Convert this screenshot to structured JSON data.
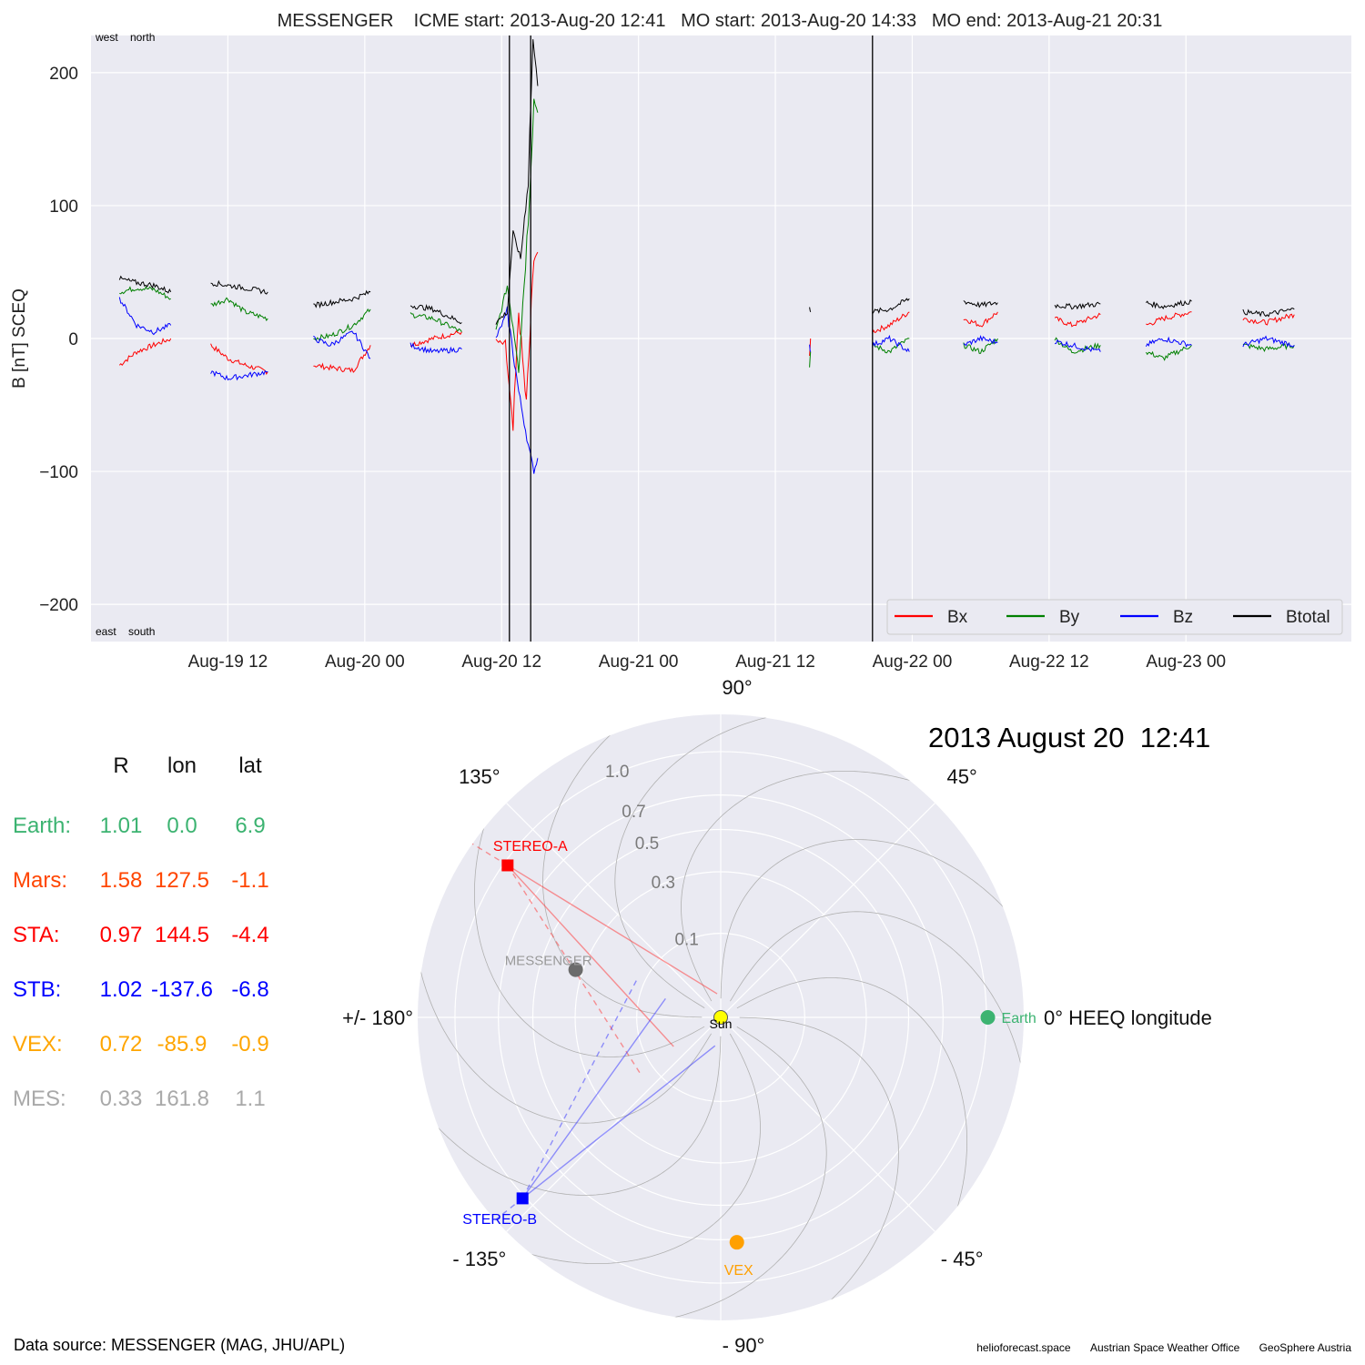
{
  "chart_data": [
    {
      "type": "line",
      "title": "MESSENGER    ICME start: 2013-Aug-20 12:41   MO start: 2013-Aug-20 14:33   MO end: 2013-Aug-21 20:31",
      "ylabel": "B [nT] SCEQ",
      "ylim": [
        -228,
        228
      ],
      "xlim": [
        "2013-08-19 00:00",
        "2013-08-23 14:30"
      ],
      "yticks": [
        -200,
        -100,
        0,
        100,
        200
      ],
      "xticks": [
        "Aug-19 12",
        "Aug-20 00",
        "Aug-20 12",
        "Aug-21 00",
        "Aug-21 12",
        "Aug-22 00",
        "Aug-22 12",
        "Aug-23 00"
      ],
      "xtick_times": [
        "2013-08-19 12:00",
        "2013-08-20 00:00",
        "2013-08-20 12:00",
        "2013-08-21 00:00",
        "2013-08-21 12:00",
        "2013-08-22 00:00",
        "2013-08-22 12:00",
        "2013-08-23 00:00"
      ],
      "corner_labels": {
        "top": "west    north",
        "bottom": "east    south"
      },
      "vlines": [
        "2013-08-20 12:41",
        "2013-08-20 14:33",
        "2013-08-21 20:31"
      ],
      "grid": true,
      "legend": {
        "placement": "bottom-right",
        "entries": [
          "Bx",
          "By",
          "Bz",
          "Btotal"
        ]
      },
      "series": [
        {
          "name": "Bx",
          "color": "#ff0000",
          "segments": [
            {
              "x": [
                "2013-08-19 02:30",
                "2013-08-19 04:00",
                "2013-08-19 05:30",
                "2013-08-19 07:00"
              ],
              "y": [
                -20,
                -10,
                -5,
                0
              ]
            },
            {
              "x": [
                "2013-08-19 10:30",
                "2013-08-19 12:00",
                "2013-08-19 13:30",
                "2013-08-19 15:30"
              ],
              "y": [
                -5,
                -15,
                -20,
                -25
              ]
            },
            {
              "x": [
                "2013-08-19 19:30",
                "2013-08-19 21:00",
                "2013-08-19 23:00",
                "2013-08-20 00:30"
              ],
              "y": [
                -20,
                -22,
                -24,
                -5
              ]
            },
            {
              "x": [
                "2013-08-20 04:00",
                "2013-08-20 06:00",
                "2013-08-20 08:30"
              ],
              "y": [
                -5,
                0,
                5
              ]
            },
            {
              "x": [
                "2013-08-20 11:30",
                "2013-08-20 12:20",
                "2013-08-20 13:00",
                "2013-08-20 13:30",
                "2013-08-20 14:10",
                "2013-08-20 14:50",
                "2013-08-20 15:10"
              ],
              "y": [
                -2,
                -5,
                -70,
                20,
                -50,
                60,
                65
              ]
            },
            {
              "x": [
                "2013-08-21 15:00",
                "2013-08-21 15:05"
              ],
              "y": [
                -15,
                0
              ]
            },
            {
              "x": [
                "2013-08-21 20:30",
                "2013-08-21 22:00",
                "2013-08-21 23:45"
              ],
              "y": [
                5,
                10,
                20
              ]
            },
            {
              "x": [
                "2013-08-22 04:30",
                "2013-08-22 06:00",
                "2013-08-22 07:30"
              ],
              "y": [
                15,
                10,
                20
              ]
            },
            {
              "x": [
                "2013-08-22 12:30",
                "2013-08-22 14:00",
                "2013-08-22 16:30"
              ],
              "y": [
                15,
                10,
                18
              ]
            },
            {
              "x": [
                "2013-08-22 20:30",
                "2013-08-22 22:00",
                "2013-08-23 00:30"
              ],
              "y": [
                10,
                15,
                20
              ]
            },
            {
              "x": [
                "2013-08-23 05:00",
                "2013-08-23 07:00",
                "2013-08-23 09:30"
              ],
              "y": [
                15,
                12,
                18
              ]
            }
          ]
        },
        {
          "name": "By",
          "color": "#008000",
          "segments": [
            {
              "x": [
                "2013-08-19 02:30",
                "2013-08-19 04:00",
                "2013-08-19 05:30",
                "2013-08-19 07:00"
              ],
              "y": [
                35,
                38,
                37,
                30
              ]
            },
            {
              "x": [
                "2013-08-19 10:30",
                "2013-08-19 12:00",
                "2013-08-19 13:30",
                "2013-08-19 15:30"
              ],
              "y": [
                25,
                30,
                20,
                15
              ]
            },
            {
              "x": [
                "2013-08-19 19:30",
                "2013-08-19 21:00",
                "2013-08-19 23:00",
                "2013-08-20 00:30"
              ],
              "y": [
                0,
                2,
                10,
                22
              ]
            },
            {
              "x": [
                "2013-08-20 04:00",
                "2013-08-20 06:00",
                "2013-08-20 08:30"
              ],
              "y": [
                18,
                15,
                5
              ]
            },
            {
              "x": [
                "2013-08-20 11:30",
                "2013-08-20 12:30",
                "2013-08-20 13:30",
                "2013-08-20 14:20",
                "2013-08-20 14:50",
                "2013-08-20 15:10"
              ],
              "y": [
                5,
                40,
                -20,
                90,
                180,
                170
              ]
            },
            {
              "x": [
                "2013-08-21 15:00",
                "2013-08-21 15:05"
              ],
              "y": [
                -20,
                -10
              ]
            },
            {
              "x": [
                "2013-08-21 20:30",
                "2013-08-21 22:00",
                "2013-08-21 23:45"
              ],
              "y": [
                -5,
                -10,
                0
              ]
            },
            {
              "x": [
                "2013-08-22 04:30",
                "2013-08-22 06:00",
                "2013-08-22 07:30"
              ],
              "y": [
                -5,
                -10,
                0
              ]
            },
            {
              "x": [
                "2013-08-22 12:30",
                "2013-08-22 14:00",
                "2013-08-22 16:30"
              ],
              "y": [
                0,
                -10,
                -5
              ]
            },
            {
              "x": [
                "2013-08-22 20:30",
                "2013-08-22 22:00",
                "2013-08-23 00:30"
              ],
              "y": [
                -10,
                -15,
                -5
              ]
            },
            {
              "x": [
                "2013-08-23 05:00",
                "2013-08-23 07:00",
                "2013-08-23 09:30"
              ],
              "y": [
                -5,
                -8,
                -5
              ]
            }
          ]
        },
        {
          "name": "Bz",
          "color": "#0000ff",
          "segments": [
            {
              "x": [
                "2013-08-19 02:30",
                "2013-08-19 04:00",
                "2013-08-19 05:30",
                "2013-08-19 07:00"
              ],
              "y": [
                30,
                10,
                5,
                10
              ]
            },
            {
              "x": [
                "2013-08-19 10:30",
                "2013-08-19 12:00",
                "2013-08-19 13:30",
                "2013-08-19 15:30"
              ],
              "y": [
                -25,
                -30,
                -28,
                -25
              ]
            },
            {
              "x": [
                "2013-08-19 19:30",
                "2013-08-19 21:00",
                "2013-08-19 23:00",
                "2013-08-20 00:30"
              ],
              "y": [
                0,
                -5,
                5,
                -15
              ]
            },
            {
              "x": [
                "2013-08-20 04:00",
                "2013-08-20 06:00",
                "2013-08-20 08:30"
              ],
              "y": [
                -5,
                -10,
                -8
              ]
            },
            {
              "x": [
                "2013-08-20 11:30",
                "2013-08-20 12:30",
                "2013-08-20 13:30",
                "2013-08-20 14:20",
                "2013-08-20 14:50",
                "2013-08-20 15:10"
              ],
              "y": [
                0,
                20,
                -40,
                -80,
                -100,
                -90
              ]
            },
            {
              "x": [
                "2013-08-21 15:00",
                "2013-08-21 15:05"
              ],
              "y": [
                -5,
                -10
              ]
            },
            {
              "x": [
                "2013-08-21 20:30",
                "2013-08-21 22:00",
                "2013-08-21 23:45"
              ],
              "y": [
                -5,
                0,
                -10
              ]
            },
            {
              "x": [
                "2013-08-22 04:30",
                "2013-08-22 06:00",
                "2013-08-22 07:30"
              ],
              "y": [
                -5,
                0,
                -3
              ]
            },
            {
              "x": [
                "2013-08-22 12:30",
                "2013-08-22 14:00",
                "2013-08-22 16:30"
              ],
              "y": [
                -2,
                -5,
                -10
              ]
            },
            {
              "x": [
                "2013-08-22 20:30",
                "2013-08-22 22:00",
                "2013-08-23 00:30"
              ],
              "y": [
                -5,
                0,
                -5
              ]
            },
            {
              "x": [
                "2013-08-23 05:00",
                "2013-08-23 07:00",
                "2013-08-23 09:30"
              ],
              "y": [
                -5,
                0,
                -5
              ]
            }
          ]
        },
        {
          "name": "Btotal",
          "color": "#000000",
          "segments": [
            {
              "x": [
                "2013-08-19 02:30",
                "2013-08-19 04:00",
                "2013-08-19 05:30",
                "2013-08-19 07:00"
              ],
              "y": [
                45,
                42,
                40,
                35
              ]
            },
            {
              "x": [
                "2013-08-19 10:30",
                "2013-08-19 12:00",
                "2013-08-19 13:30",
                "2013-08-19 15:30"
              ],
              "y": [
                42,
                40,
                38,
                35
              ]
            },
            {
              "x": [
                "2013-08-19 19:30",
                "2013-08-19 21:00",
                "2013-08-19 23:00",
                "2013-08-20 00:30"
              ],
              "y": [
                25,
                27,
                30,
                35
              ]
            },
            {
              "x": [
                "2013-08-20 04:00",
                "2013-08-20 06:00",
                "2013-08-20 08:30"
              ],
              "y": [
                25,
                22,
                12
              ]
            },
            {
              "x": [
                "2013-08-20 11:30",
                "2013-08-20 12:30",
                "2013-08-20 13:00",
                "2013-08-20 13:40",
                "2013-08-20 14:20",
                "2013-08-20 14:45",
                "2013-08-20 15:10"
              ],
              "y": [
                12,
                20,
                80,
                60,
                120,
                225,
                190
              ]
            },
            {
              "x": [
                "2013-08-21 15:00",
                "2013-08-21 15:05"
              ],
              "y": [
                25,
                20
              ]
            },
            {
              "x": [
                "2013-08-21 20:30",
                "2013-08-21 22:00",
                "2013-08-21 23:45"
              ],
              "y": [
                20,
                22,
                30
              ]
            },
            {
              "x": [
                "2013-08-22 04:30",
                "2013-08-22 06:00",
                "2013-08-22 07:30"
              ],
              "y": [
                28,
                25,
                27
              ]
            },
            {
              "x": [
                "2013-08-22 12:30",
                "2013-08-22 14:00",
                "2013-08-22 16:30"
              ],
              "y": [
                25,
                24,
                26
              ]
            },
            {
              "x": [
                "2013-08-22 20:30",
                "2013-08-22 22:00",
                "2013-08-23 00:30"
              ],
              "y": [
                27,
                24,
                28
              ]
            },
            {
              "x": [
                "2013-08-23 05:00",
                "2013-08-23 07:00",
                "2013-08-23 09:30"
              ],
              "y": [
                20,
                18,
                22
              ]
            }
          ]
        }
      ]
    },
    {
      "type": "scatter",
      "subtype": "polar",
      "title": "2013 August 20  12:41",
      "radial_ticks": [
        0.1,
        0.3,
        0.5,
        0.7,
        1.0
      ],
      "r_max": 1.3,
      "angle_labels": {
        "0": "0° HEEQ longitude",
        "45": "45°",
        "90": "90°",
        "135": "135°",
        "180": "+/- 180°",
        "-135": "- 135°",
        "-90": "- 90°",
        "-45": "- 45°"
      },
      "grid": true,
      "points": [
        {
          "name": "Sun",
          "r": 0.0,
          "lon": 0.0,
          "color": "#ffff00",
          "marker": "circle"
        },
        {
          "name": "Earth",
          "r": 1.01,
          "lon": 0.0,
          "color": "#3cb371",
          "marker": "circle"
        },
        {
          "name": "STEREO-A",
          "r": 0.97,
          "lon": 144.5,
          "color": "#ff0000",
          "marker": "square"
        },
        {
          "name": "STEREO-B",
          "r": 1.02,
          "lon": -137.6,
          "color": "#0000ff",
          "marker": "square"
        },
        {
          "name": "VEX",
          "r": 0.72,
          "lon": -85.9,
          "color": "#ffa000",
          "marker": "circle"
        },
        {
          "name": "MESSENGER",
          "r": 0.33,
          "lon": 161.8,
          "color": "#6b6b6b",
          "marker": "circle"
        }
      ]
    }
  ],
  "positions": {
    "headers": [
      "R",
      "lon",
      "lat"
    ],
    "rows": [
      {
        "name": "Earth:",
        "r": "1.01",
        "lon": "0.0",
        "lat": "6.9",
        "color": "#3cb371"
      },
      {
        "name": "Mars:",
        "r": "1.58",
        "lon": "127.5",
        "lat": "-1.1",
        "color": "#ff4500"
      },
      {
        "name": "STA:",
        "r": "0.97",
        "lon": "144.5",
        "lat": "-4.4",
        "color": "#ff0000"
      },
      {
        "name": "STB:",
        "r": "1.02",
        "lon": "-137.6",
        "lat": "-6.8",
        "color": "#0000ff"
      },
      {
        "name": "VEX:",
        "r": "0.72",
        "lon": "-85.9",
        "lat": "-0.9",
        "color": "#ffa500"
      },
      {
        "name": "MES:",
        "r": "0.33",
        "lon": "161.8",
        "lat": "1.1",
        "color": "#a9a9a9"
      }
    ]
  },
  "footer": {
    "data_source": "Data source: MESSENGER (MAG, JHU/APL)",
    "credits": [
      "helioforecast.space",
      "Austrian Space Weather Office",
      "GeoSphere Austria"
    ]
  }
}
